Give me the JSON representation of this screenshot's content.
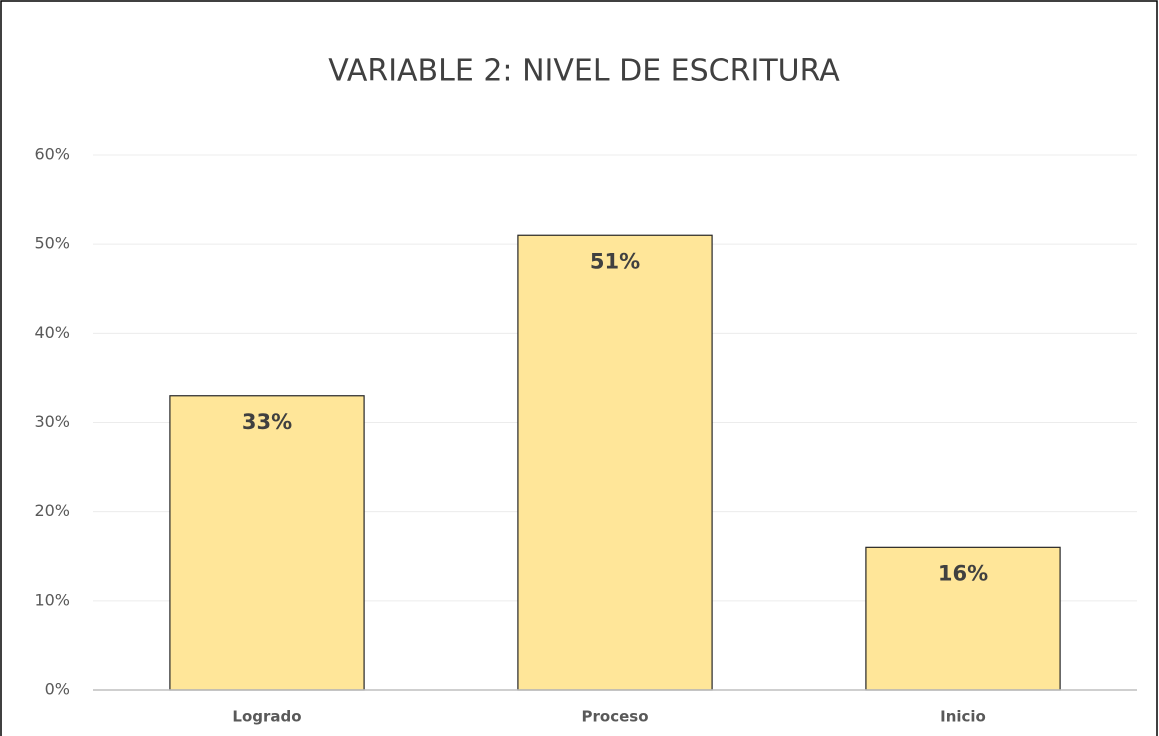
{
  "chart_data": {
    "type": "bar",
    "title": "VARIABLE 2: NIVEL DE ESCRITURA",
    "categories": [
      "Logrado",
      "Proceso",
      "Inicio"
    ],
    "values": [
      33,
      51,
      16
    ],
    "value_labels": [
      "33%",
      "51%",
      "16%"
    ],
    "color": "#FFE699",
    "ylim": [
      0,
      60
    ],
    "yticks": [
      {
        "value": 0,
        "label": "0%"
      },
      {
        "value": 10,
        "label": "10%"
      },
      {
        "value": 20,
        "label": "20%"
      },
      {
        "value": 30,
        "label": "30%"
      },
      {
        "value": 40,
        "label": "40%"
      },
      {
        "value": 50,
        "label": "50%"
      },
      {
        "value": 60,
        "label": "60%"
      }
    ],
    "grid": true
  }
}
